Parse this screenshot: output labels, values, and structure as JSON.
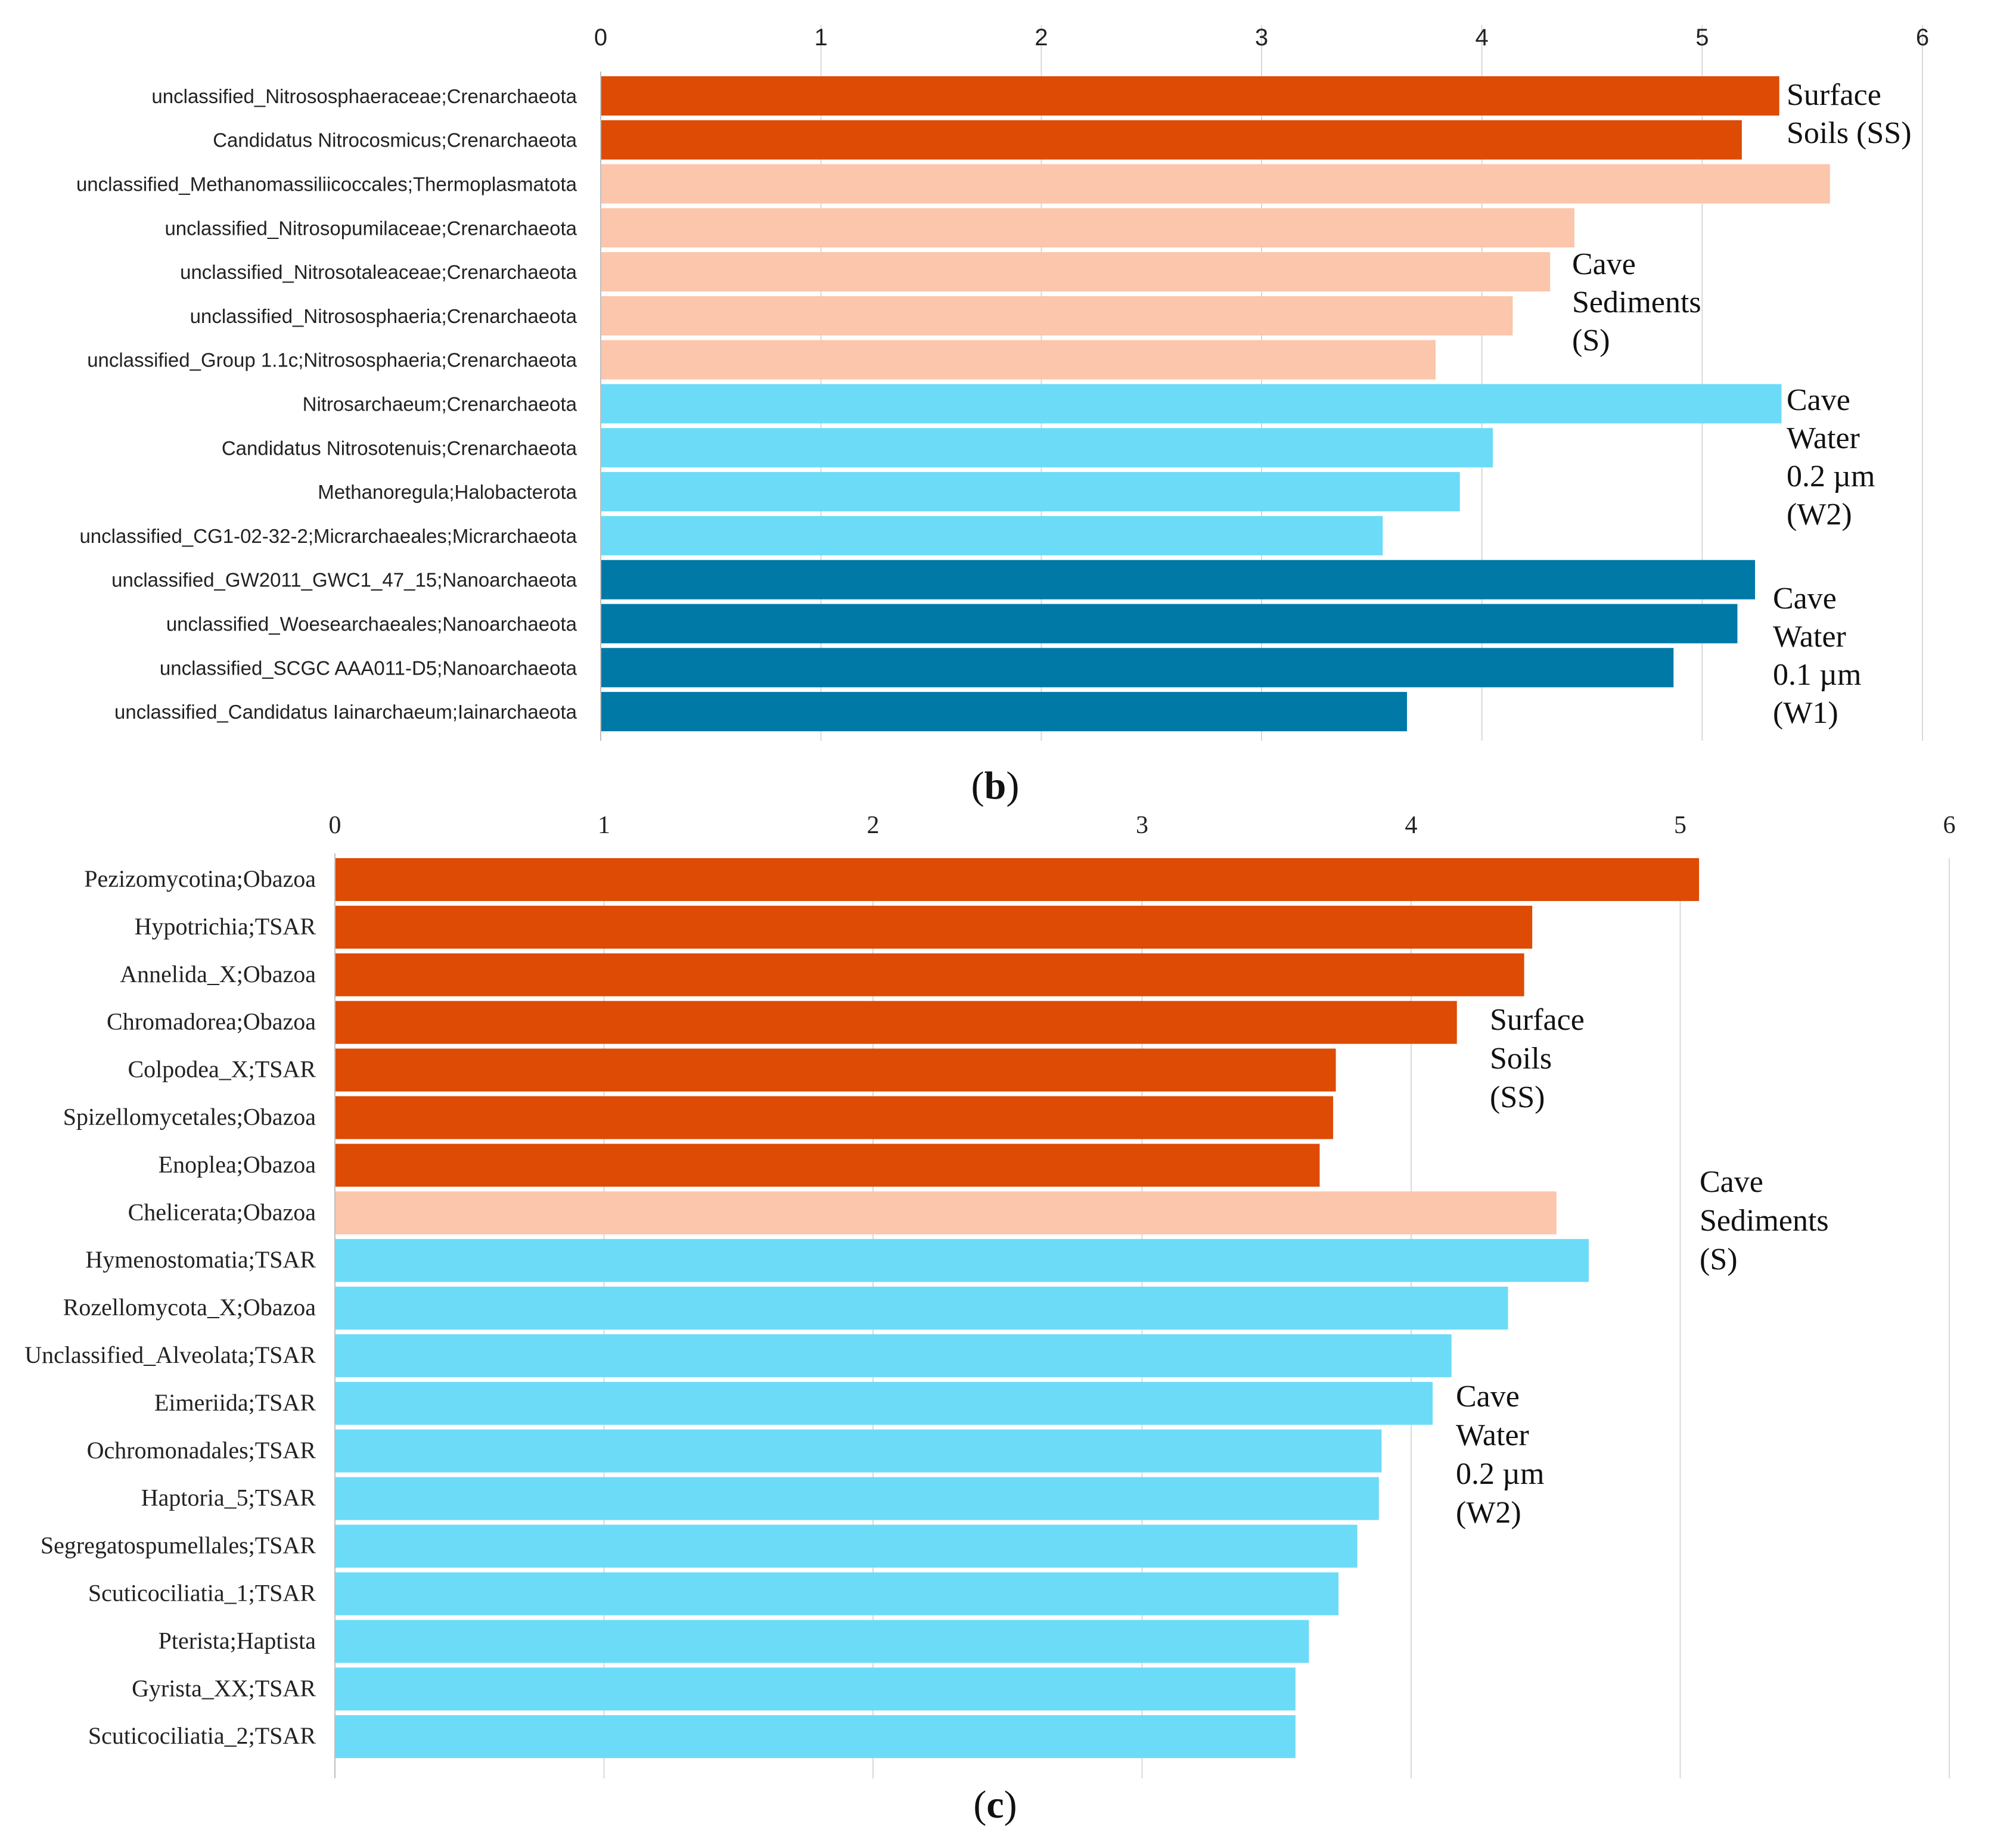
{
  "colors": {
    "SS": "#dd4b05",
    "S": "#fbc6ab",
    "W2": "#6cdbf8",
    "W1": "#0079a6",
    "grid": "#d9d9d9"
  },
  "chart_data": [
    {
      "id": "b",
      "type": "bar",
      "orientation": "horizontal",
      "panel_label": {
        "open": "(",
        "letter": "b",
        "close": ")"
      },
      "xlim": [
        0,
        6
      ],
      "tick_labels": [
        "0",
        "1",
        "2",
        "3",
        "4",
        "5",
        "6"
      ],
      "axis_position": "top",
      "grid": true,
      "categories": [
        "unclassified_Nitrososphaeraceae;Crenarchaeota",
        "Candidatus Nitrocosmicus;Crenarchaeota",
        "unclassified_Methanomassiliicoccales;Thermoplasmatota",
        "unclassified_Nitrosopumilaceae;Crenarchaeota",
        "unclassified_Nitrosotaleaceae;Crenarchaeota",
        "unclassified_Nitrososphaeria;Crenarchaeota",
        "unclassified_Group 1.1c;Nitrososphaeria;Crenarchaeota",
        "Nitrosarchaeum;Crenarchaeota",
        "Candidatus Nitrosotenuis;Crenarchaeota",
        "Methanoregula;Halobacterota",
        "unclassified_CG1-02-32-2;Micrarchaeales;Micrarchaeota",
        "unclassified_GW2011_GWC1_47_15;Nanoarchaeota",
        "unclassified_Woesearchaeales;Nanoarchaeota",
        "unclassified_SCGC AAA011-D5;Nanoarchaeota",
        "unclassified_Candidatus Iainarchaeum;Iainarchaeota"
      ],
      "values": [
        5.35,
        5.18,
        5.58,
        4.42,
        4.31,
        4.14,
        3.79,
        5.36,
        4.05,
        3.9,
        3.55,
        5.24,
        5.16,
        4.87,
        3.66
      ],
      "groups": [
        "SS",
        "SS",
        "S",
        "S",
        "S",
        "S",
        "S",
        "W2",
        "W2",
        "W2",
        "W2",
        "W1",
        "W1",
        "W1",
        "W1"
      ],
      "annotations": [
        {
          "group": "SS",
          "lines": [
            "Surface",
            "Soils (SS)"
          ]
        },
        {
          "group": "S",
          "lines": [
            "Cave",
            "Sediments",
            "(S)"
          ]
        },
        {
          "group": "W2",
          "lines": [
            "Cave",
            "Water",
            "0.2 µm",
            "(W2)"
          ]
        },
        {
          "group": "W1",
          "lines": [
            "Cave",
            "Water",
            "0.1 µm",
            "(W1)"
          ]
        }
      ]
    },
    {
      "id": "c",
      "type": "bar",
      "orientation": "horizontal",
      "panel_label": {
        "open": "(",
        "letter": "c",
        "close": ")"
      },
      "xlim": [
        0,
        6
      ],
      "tick_labels": [
        "0",
        "1",
        "2",
        "3",
        "4",
        "5",
        "6"
      ],
      "axis_position": "top",
      "grid": true,
      "categories": [
        "Pezizomycotina;Obazoa",
        "Hypotrichia;TSAR",
        "Annelida_X;Obazoa",
        "Chromadorea;Obazoa",
        "Colpodea_X;TSAR",
        "Spizellomycetales;Obazoa",
        "Enoplea;Obazoa",
        "Chelicerata;Obazoa",
        "Hymenostomatia;TSAR",
        "Rozellomycota_X;Obazoa",
        "Unclassified_Alveolata;TSAR",
        "Eimeriida;TSAR",
        "Ochromonadales;TSAR",
        "Haptoria_5;TSAR",
        "Segregatospumellales;TSAR",
        "Scuticociliatia_1;TSAR",
        "Pterista;Haptista",
        "Gyrista_XX;TSAR",
        "Scuticociliatia_2;TSAR"
      ],
      "values": [
        5.07,
        4.45,
        4.42,
        4.17,
        3.72,
        3.71,
        3.66,
        4.54,
        4.66,
        4.36,
        4.15,
        4.08,
        3.89,
        3.88,
        3.8,
        3.73,
        3.62,
        3.57,
        3.57
      ],
      "groups": [
        "SS",
        "SS",
        "SS",
        "SS",
        "SS",
        "SS",
        "SS",
        "S",
        "W2",
        "W2",
        "W2",
        "W2",
        "W2",
        "W2",
        "W2",
        "W2",
        "W2",
        "W2",
        "W2"
      ],
      "annotations": [
        {
          "group": "SS",
          "lines": [
            "Surface",
            "Soils",
            "(SS)"
          ]
        },
        {
          "group": "S",
          "lines": [
            "Cave",
            "Sediments",
            "(S)"
          ]
        },
        {
          "group": "W2",
          "lines": [
            "Cave",
            "Water",
            "0.2 µm",
            "(W2)"
          ]
        }
      ]
    }
  ]
}
